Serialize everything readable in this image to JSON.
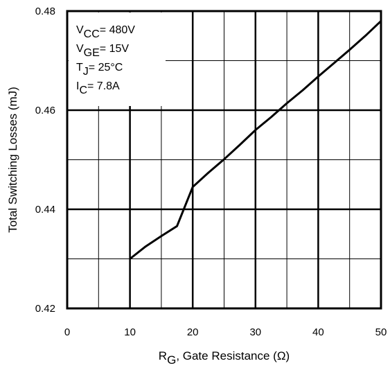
{
  "chart_data": {
    "type": "line",
    "xlabel": {
      "main": "R",
      "sub": "G",
      "rest": ", Gate Resistance  (Ω)"
    },
    "ylabel": "Total Switching Losses (mJ)",
    "xlim": [
      0,
      50
    ],
    "ylim": [
      0.42,
      0.48
    ],
    "x_ticks": [
      0,
      10,
      20,
      30,
      40,
      50
    ],
    "x_tick_labels": [
      "0",
      "10",
      "20",
      "30",
      "40",
      "50"
    ],
    "y_ticks": [
      0.42,
      0.44,
      0.46,
      0.48
    ],
    "y_tick_labels": [
      "0.42",
      "0.44",
      "0.46",
      "0.48"
    ],
    "grid": true,
    "conditions": [
      {
        "main": "V",
        "sub": "CC",
        "rest": "= 480V"
      },
      {
        "main": "V",
        "sub": "GE",
        "rest": "= 15V"
      },
      {
        "main": "T",
        "sub": "J",
        "rest": "= 25°C"
      },
      {
        "main": "I",
        "sub": "C",
        "rest": "= 7.8A"
      }
    ],
    "series": [
      {
        "x": [
          10,
          12.5,
          15,
          17.5,
          20,
          22.5,
          25,
          27.5,
          30,
          32.5,
          35,
          37.5,
          40,
          42.5,
          45,
          47.5,
          50
        ],
        "y": [
          0.43,
          0.4325,
          0.4346,
          0.4366,
          0.4445,
          0.4474,
          0.4501,
          0.453,
          0.456,
          0.4586,
          0.4614,
          0.464,
          0.4668,
          0.4695,
          0.4722,
          0.475,
          0.478
        ]
      }
    ]
  }
}
